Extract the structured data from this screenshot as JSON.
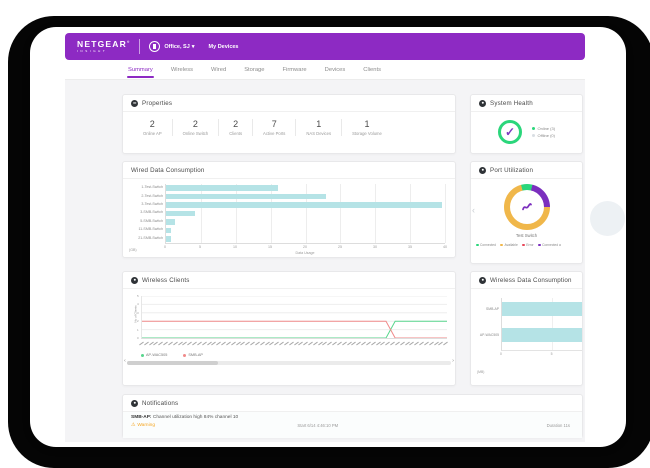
{
  "colors": {
    "brand_purple": "#8D2AC3",
    "teal_bar": "#B5E3E6",
    "green": "#2BD67B",
    "purple_accent": "#7B2FBE",
    "orange": "#F0B74A",
    "red": "#E8485A",
    "warning_orange": "#F5A623"
  },
  "appbar": {
    "brand": "NETGEAR",
    "brand_reg": "®",
    "brand_sub": "INSIGHT",
    "location": "Office, SJ",
    "caret": "▾",
    "my_devices": "My Devices"
  },
  "tabs": [
    {
      "label": "Summary",
      "active": true
    },
    {
      "label": "Wireless",
      "active": false
    },
    {
      "label": "Wired",
      "active": false
    },
    {
      "label": "Storage",
      "active": false
    },
    {
      "label": "Firmware",
      "active": false
    },
    {
      "label": "Devices",
      "active": false
    },
    {
      "label": "Clients",
      "active": false
    }
  ],
  "properties": {
    "title": "Properties",
    "stats": [
      {
        "value": "2",
        "label": "Online AP"
      },
      {
        "value": "2",
        "label": "Online Switch"
      },
      {
        "value": "2",
        "label": "Clients"
      },
      {
        "value": "7",
        "label": "Active Ports"
      },
      {
        "value": "1",
        "label": "NAS Devices"
      },
      {
        "value": "1",
        "label": "Storage Volume"
      }
    ]
  },
  "system_health": {
    "title": "System Health",
    "check": "✓",
    "legend": [
      {
        "label": "Online (3)",
        "color": "#2BD67B"
      },
      {
        "label": "Offline (0)",
        "color": "#D9DEE3"
      }
    ]
  },
  "wired": {
    "title": "Wired Data Consumption"
  },
  "port": {
    "title": "Port Utilization",
    "device": "Test Switch",
    "carousel_prev": "‹",
    "legend": [
      {
        "label": "Connected",
        "color": "#2BD67B"
      },
      {
        "label": "Available",
        "color": "#F0B74A"
      },
      {
        "label": "Error",
        "color": "#E8485A"
      },
      {
        "label": "Connected a",
        "color": "#7B2FBE"
      }
    ]
  },
  "wireless_clients": {
    "title": "Wireless Clients",
    "scrollbar": {
      "left_arrow": "‹",
      "right_arrow": "›"
    }
  },
  "wireless_data": {
    "title": "Wireless Data Consumption"
  },
  "notifications": {
    "title": "Notifications",
    "items": [
      {
        "device": "SMB-AP:",
        "message": "Channel utilization high 84% channel 10",
        "warning_icon": "⚠",
        "severity": "Warning",
        "start": "Start 6/14 4:46:10 PM",
        "duration": "Duration 11s"
      }
    ]
  },
  "chart_data": [
    {
      "id": "wired",
      "type": "bar",
      "title": "Wired Data Consumption",
      "orientation": "horizontal",
      "categories": [
        "1-Test-Switch",
        "2-Test-Switch",
        "3-Test-Switch",
        "3-SMB-Switch",
        "5-SMB-Switch",
        "11-SMB-Switch",
        "21-SMB-Switch"
      ],
      "values": [
        16,
        23,
        39.5,
        4.2,
        1.3,
        0.7,
        0.7
      ],
      "xlabel": "Data Usage",
      "unit": "(GB)",
      "xlim": [
        0,
        40
      ],
      "xticks": [
        0,
        5,
        10,
        15,
        20,
        25,
        30,
        35,
        40
      ],
      "bar_color": "#B5E3E6",
      "grid": true
    },
    {
      "id": "port",
      "type": "pie",
      "title": "Port Utilization",
      "device": "Test Switch",
      "donut": true,
      "start_angle_deg": -15,
      "segments": [
        {
          "name": "Connected",
          "color": "#2BD67B",
          "pct": 8
        },
        {
          "name": "Connected a",
          "color": "#7B2FBE",
          "pct": 21
        },
        {
          "name": "Available",
          "color": "#F0B74A",
          "pct": 71
        },
        {
          "name": "Error",
          "color": "#E8485A",
          "pct": 0
        }
      ]
    },
    {
      "id": "wireless_clients",
      "type": "line",
      "title": "Wireless Clients",
      "ylabel": "No of Clients",
      "ylim": [
        0,
        5
      ],
      "yticks": [
        0,
        1,
        2,
        3,
        4,
        5
      ],
      "x_axis_note": "dense rotated time-of-day tick labels, illegible at source resolution",
      "x_tick_mark_count": 64,
      "series": [
        {
          "name": "AP-WAC505",
          "color": "#58D68D",
          "points": [
            [
              0,
              0
            ],
            [
              80,
              0
            ],
            [
              83,
              2
            ],
            [
              100,
              2
            ]
          ]
        },
        {
          "name": "SMB-AP",
          "color": "#F08A8A",
          "points": [
            [
              0,
              2
            ],
            [
              80,
              2
            ],
            [
              83,
              0
            ],
            [
              100,
              0
            ]
          ]
        }
      ],
      "legend_position": "bottom-left"
    },
    {
      "id": "wireless_data",
      "type": "bar",
      "title": "Wireless Data Consumption",
      "orientation": "horizontal",
      "categories": [
        "SMB-AP",
        "AP-WAC505"
      ],
      "values": [
        8,
        8
      ],
      "unit": "(MB)",
      "xlim": [
        0,
        8
      ],
      "xticks": [
        0,
        5
      ],
      "bar_color": "#B5E3E6",
      "grid": true
    }
  ]
}
